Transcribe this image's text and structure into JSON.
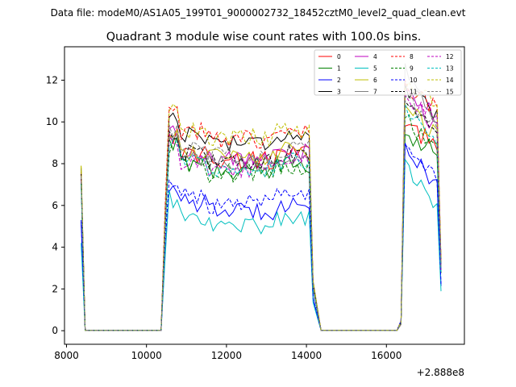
{
  "chart_data": {
    "type": "line",
    "suptitle": "Data file: modeM0/AS1A05_199T01_9000002732_18452cztM0_level2_quad_clean.evt",
    "title": "Quadrant 3 module wise count rates with 100.0s bins.",
    "xlabel": "",
    "ylabel": "",
    "x_offset_label": "+2.888e8",
    "xlim": [
      7950,
      17950
    ],
    "ylim": [
      -0.65,
      13.6
    ],
    "x_ticks": [
      8000,
      10000,
      12000,
      14000,
      16000
    ],
    "y_ticks": [
      0,
      2,
      4,
      6,
      8,
      10,
      12
    ],
    "legend_position": "top-right",
    "segments": [
      {
        "start": 8366,
        "n": 2
      },
      {
        "start": 10466,
        "n": 38
      },
      {
        "start": 16366,
        "n": 11
      }
    ],
    "gaps": [
      {
        "x": [
          8466,
          10366
        ]
      },
      {
        "x": [
          14366,
          16266
        ]
      }
    ],
    "series": [
      {
        "name": "0",
        "color": "#ff0000",
        "dash": "solid",
        "level": 8.5,
        "edge": 7.6,
        "peak": 9.8,
        "late": 9.0
      },
      {
        "name": "1",
        "color": "#008000",
        "dash": "solid",
        "level": 8.0,
        "edge": 7.2,
        "peak": 9.4,
        "late": 8.8
      },
      {
        "name": "2",
        "color": "#0000ff",
        "dash": "solid",
        "level": 6.1,
        "edge": 5.2,
        "peak": 9.0,
        "late": 6.8
      },
      {
        "name": "3",
        "color": "#000000",
        "dash": "solid",
        "level": 9.4,
        "edge": 7.8,
        "peak": 11.8,
        "late": 10.2
      },
      {
        "name": "4",
        "color": "#bf00bf",
        "dash": "solid",
        "level": 8.6,
        "edge": 7.4,
        "peak": 11.5,
        "late": 9.6
      },
      {
        "name": "5",
        "color": "#00bfbf",
        "dash": "solid",
        "level": 5.4,
        "edge": 4.2,
        "peak": 8.2,
        "late": 5.8
      },
      {
        "name": "6",
        "color": "#bfbf00",
        "dash": "solid",
        "level": 8.6,
        "edge": 7.9,
        "peak": 10.8,
        "late": 9.4
      },
      {
        "name": "7",
        "color": "#808080",
        "dash": "solid",
        "level": 8.3,
        "edge": 7.3,
        "peak": 12.8,
        "late": 9.8
      },
      {
        "name": "8",
        "color": "#ff0000",
        "dash": "dashed",
        "level": 9.5,
        "edge": 7.5,
        "peak": 12.0,
        "late": 10.6
      },
      {
        "name": "9",
        "color": "#008000",
        "dash": "dashed",
        "level": 7.9,
        "edge": 7.1,
        "peak": 10.2,
        "late": 8.9
      },
      {
        "name": "10",
        "color": "#0000ff",
        "dash": "dashed",
        "level": 6.4,
        "edge": 5.3,
        "peak": 8.9,
        "late": 7.1
      },
      {
        "name": "11",
        "color": "#000000",
        "dash": "dashed",
        "level": 8.5,
        "edge": 7.5,
        "peak": 11.0,
        "late": 9.5
      },
      {
        "name": "12",
        "color": "#bf00bf",
        "dash": "dashed",
        "level": 8.1,
        "edge": 7.2,
        "peak": 11.3,
        "late": 10.4
      },
      {
        "name": "13",
        "color": "#00bfbf",
        "dash": "dashed",
        "level": 8.1,
        "edge": 7.0,
        "peak": 10.9,
        "late": 9.0
      },
      {
        "name": "14",
        "color": "#bfbf00",
        "dash": "dashed",
        "level": 9.6,
        "edge": 7.9,
        "peak": 11.6,
        "late": 11.0
      },
      {
        "name": "15",
        "color": "#808080",
        "dash": "dashed",
        "level": 8.7,
        "edge": 7.4,
        "peak": 11.2,
        "late": 9.9
      }
    ]
  }
}
